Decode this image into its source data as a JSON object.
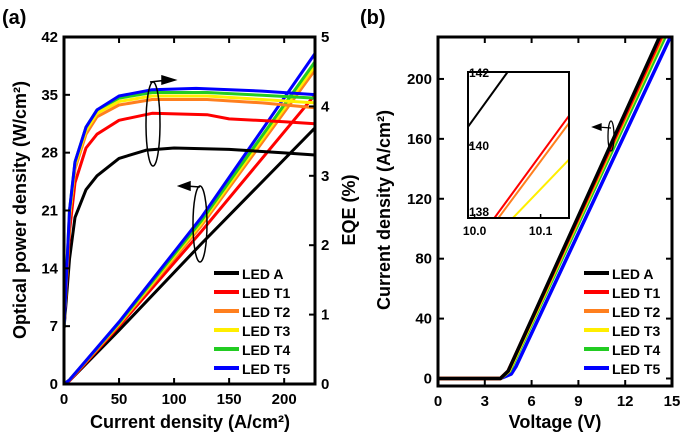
{
  "legend": [
    "LED A",
    "LED T1",
    "LED T2",
    "LED T3",
    "LED T4",
    "LED T5"
  ],
  "colors": [
    "#000000",
    "#ff0000",
    "#ff7f1e",
    "#ffee00",
    "#22cc22",
    "#0000ff"
  ],
  "chart_data": [
    {
      "panel_label": "(a)",
      "type": "line",
      "xlabel": "Current density (A/cm²)",
      "ylabel": "Optical power density (W/cm²)",
      "y2label": "EQE (%)",
      "xlim": [
        0,
        228
      ],
      "ylim": [
        0,
        42
      ],
      "y2lim": [
        0,
        5
      ],
      "xticks": [
        "0",
        "50",
        "100",
        "150",
        "200"
      ],
      "yticks": [
        "0",
        "7",
        "14",
        "21",
        "28",
        "35",
        "42"
      ],
      "y2ticks": [
        "0",
        "1",
        "2",
        "3",
        "4",
        "5"
      ],
      "legend_position": "bottom-right",
      "power_series": [
        {
          "name": "LED A",
          "points": [
            [
              0,
              0
            ],
            [
              5,
              0.4
            ],
            [
              50,
              6.5
            ],
            [
              125,
              17
            ],
            [
              228,
              31
            ]
          ]
        },
        {
          "name": "LED T1",
          "points": [
            [
              0,
              0
            ],
            [
              5,
              0.4
            ],
            [
              50,
              7
            ],
            [
              125,
              18.5
            ],
            [
              228,
              35
            ]
          ]
        },
        {
          "name": "LED T2",
          "points": [
            [
              0,
              0
            ],
            [
              5,
              0.5
            ],
            [
              50,
              7.2
            ],
            [
              125,
              19.2
            ],
            [
              228,
              38
            ]
          ]
        },
        {
          "name": "LED T3",
          "points": [
            [
              0,
              0
            ],
            [
              5,
              0.5
            ],
            [
              50,
              7.3
            ],
            [
              125,
              19.5
            ],
            [
              228,
              38.5
            ]
          ]
        },
        {
          "name": "LED T4",
          "points": [
            [
              0,
              0
            ],
            [
              5,
              0.5
            ],
            [
              50,
              7.4
            ],
            [
              125,
              19.8
            ],
            [
              228,
              39
            ]
          ]
        },
        {
          "name": "LED T5",
          "points": [
            [
              0,
              0
            ],
            [
              5,
              0.5
            ],
            [
              50,
              7.5
            ],
            [
              125,
              20.2
            ],
            [
              228,
              40
            ]
          ]
        }
      ],
      "eqe_series": [
        {
          "name": "LED A",
          "points": [
            [
              0,
              0.8
            ],
            [
              5,
              1.8
            ],
            [
              10,
              2.4
            ],
            [
              20,
              2.8
            ],
            [
              30,
              3.0
            ],
            [
              50,
              3.25
            ],
            [
              75,
              3.37
            ],
            [
              100,
              3.4
            ],
            [
              150,
              3.38
            ],
            [
              200,
              3.33
            ],
            [
              228,
              3.3
            ]
          ]
        },
        {
          "name": "LED T1",
          "points": [
            [
              0,
              0.8
            ],
            [
              5,
              2.2
            ],
            [
              10,
              2.9
            ],
            [
              20,
              3.4
            ],
            [
              30,
              3.6
            ],
            [
              50,
              3.8
            ],
            [
              80,
              3.9
            ],
            [
              130,
              3.88
            ],
            [
              150,
              3.82
            ],
            [
              200,
              3.78
            ],
            [
              228,
              3.75
            ]
          ]
        },
        {
          "name": "LED T2",
          "points": [
            [
              0,
              0.8
            ],
            [
              5,
              2.4
            ],
            [
              10,
              3.1
            ],
            [
              20,
              3.6
            ],
            [
              30,
              3.85
            ],
            [
              50,
              4.02
            ],
            [
              80,
              4.1
            ],
            [
              130,
              4.1
            ],
            [
              180,
              4.05
            ],
            [
              228,
              3.98
            ]
          ]
        },
        {
          "name": "LED T3",
          "points": [
            [
              0,
              0.8
            ],
            [
              5,
              2.4
            ],
            [
              10,
              3.15
            ],
            [
              20,
              3.65
            ],
            [
              30,
              3.9
            ],
            [
              50,
              4.07
            ],
            [
              80,
              4.15
            ],
            [
              130,
              4.15
            ],
            [
              180,
              4.1
            ],
            [
              228,
              4.05
            ]
          ]
        },
        {
          "name": "LED T4",
          "points": [
            [
              0,
              0.8
            ],
            [
              5,
              2.5
            ],
            [
              10,
              3.2
            ],
            [
              20,
              3.7
            ],
            [
              30,
              3.95
            ],
            [
              50,
              4.12
            ],
            [
              80,
              4.2
            ],
            [
              130,
              4.2
            ],
            [
              180,
              4.16
            ],
            [
              228,
              4.12
            ]
          ]
        },
        {
          "name": "LED T5",
          "points": [
            [
              0,
              0.8
            ],
            [
              5,
              2.5
            ],
            [
              10,
              3.2
            ],
            [
              20,
              3.7
            ],
            [
              30,
              3.95
            ],
            [
              50,
              4.15
            ],
            [
              80,
              4.24
            ],
            [
              120,
              4.26
            ],
            [
              180,
              4.22
            ],
            [
              228,
              4.17
            ]
          ]
        }
      ]
    },
    {
      "panel_label": "(b)",
      "type": "line",
      "xlabel": "Voltage (V)",
      "ylabel": "Current density (A/cm²)",
      "xlim": [
        0,
        15
      ],
      "ylim": [
        -5,
        228
      ],
      "xticks": [
        "0",
        "3",
        "6",
        "9",
        "12",
        "15"
      ],
      "yticks": [
        "0",
        "40",
        "80",
        "120",
        "160",
        "200"
      ],
      "legend_position": "bottom-right",
      "series": [
        {
          "name": "LED A",
          "points": [
            [
              0,
              0
            ],
            [
              4,
              0
            ],
            [
              4.5,
              5
            ],
            [
              14.2,
              228
            ]
          ]
        },
        {
          "name": "LED T1",
          "points": [
            [
              0,
              0
            ],
            [
              4,
              0
            ],
            [
              4.5,
              5
            ],
            [
              14.3,
              228
            ]
          ]
        },
        {
          "name": "LED T2",
          "points": [
            [
              0,
              0
            ],
            [
              4,
              0
            ],
            [
              4.5,
              5
            ],
            [
              14.35,
              228
            ]
          ]
        },
        {
          "name": "LED T3",
          "points": [
            [
              0,
              0
            ],
            [
              4,
              0
            ],
            [
              4.55,
              5
            ],
            [
              14.4,
              228
            ]
          ]
        },
        {
          "name": "LED T4",
          "points": [
            [
              0,
              0
            ],
            [
              4,
              0
            ],
            [
              4.6,
              5
            ],
            [
              14.55,
              228
            ]
          ]
        },
        {
          "name": "LED T5",
          "points": [
            [
              0,
              0
            ],
            [
              4,
              0
            ],
            [
              4.7,
              3
            ],
            [
              5,
              8
            ],
            [
              14.9,
              228
            ]
          ]
        }
      ],
      "inset": {
        "xlim": [
          9.99,
          10.143
        ],
        "ylim": [
          138,
          142
        ],
        "xticks": [
          "10.0",
          "10.1"
        ],
        "yticks": [
          "138",
          "140",
          "142"
        ],
        "series": [
          {
            "name": "LED A",
            "points": [
              [
                9.99,
                140.5
              ],
              [
                10.05,
                142
              ]
            ]
          },
          {
            "name": "LED T1",
            "points": [
              [
                10.03,
                138
              ],
              [
                10.143,
                140.8
              ]
            ]
          },
          {
            "name": "LED T2",
            "points": [
              [
                10.036,
                138
              ],
              [
                10.143,
                140.6
              ]
            ]
          },
          {
            "name": "LED T3",
            "points": [
              [
                10.058,
                138
              ],
              [
                10.143,
                139.6
              ]
            ]
          }
        ]
      }
    }
  ]
}
